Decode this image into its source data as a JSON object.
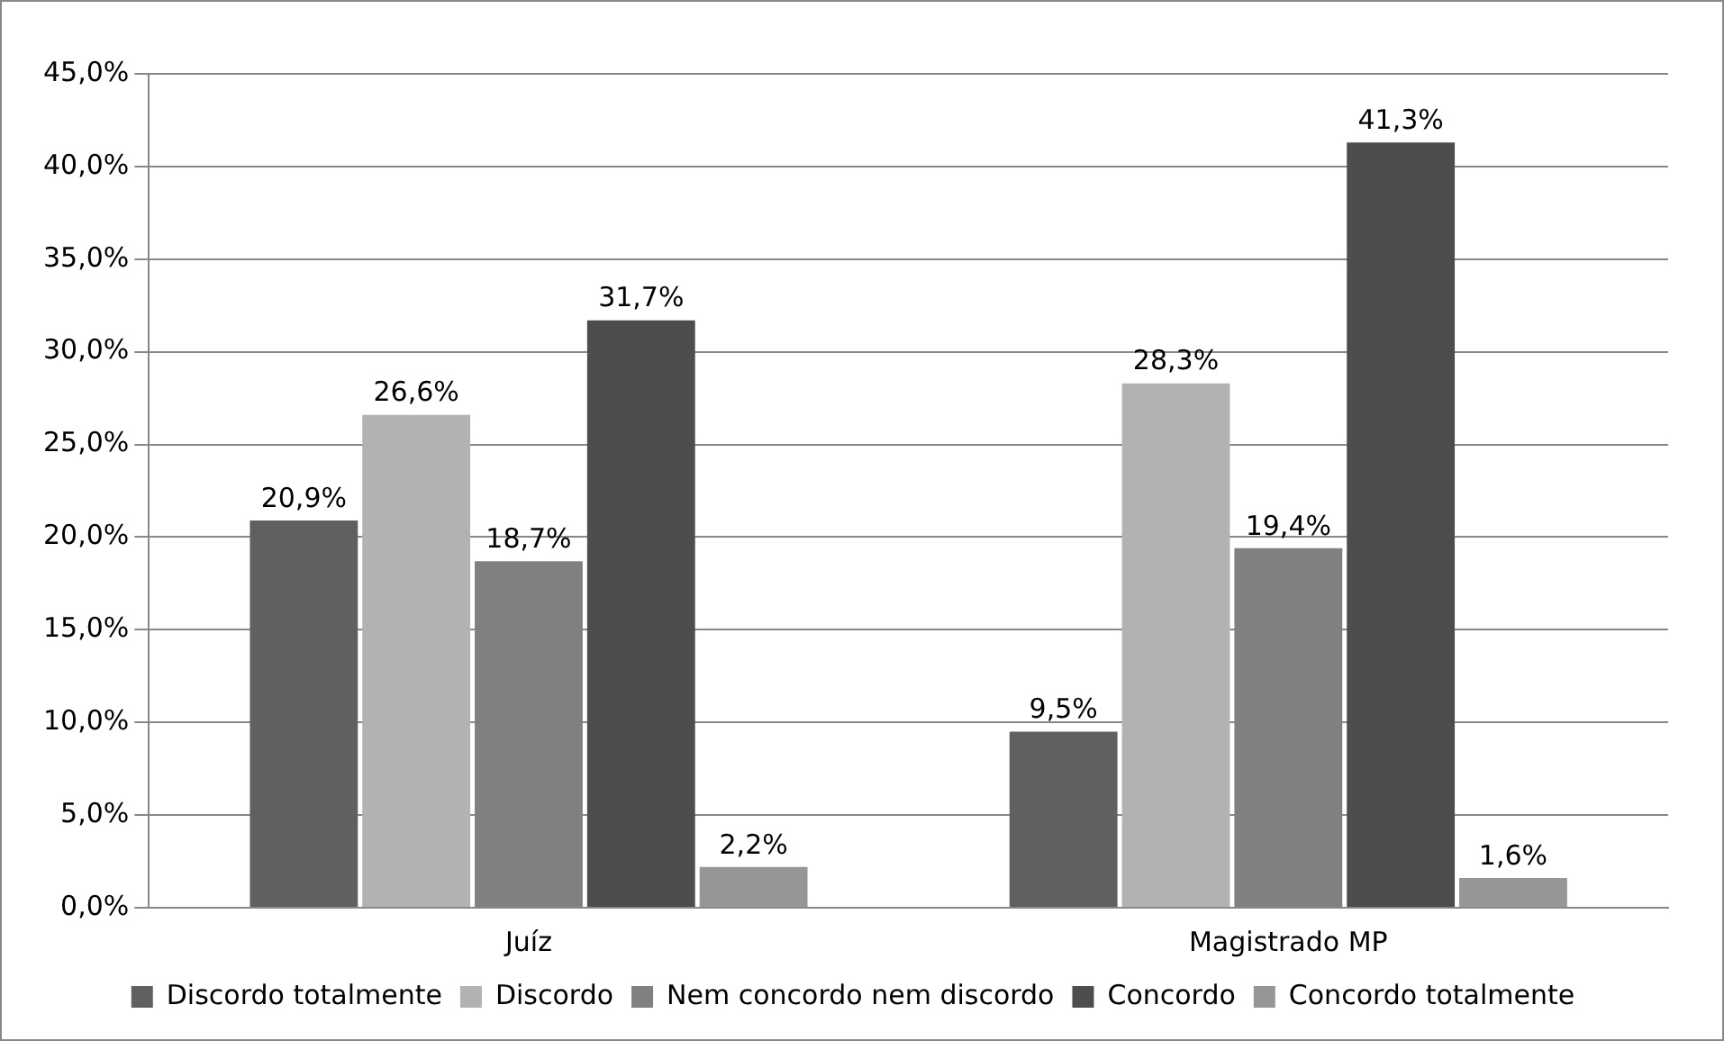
{
  "chart_data": {
    "type": "bar",
    "categories": [
      "Juíz",
      "Magistrado MP"
    ],
    "series": [
      {
        "name": "Discordo totalmente",
        "color": "#606060",
        "values": [
          20.9,
          9.5
        ],
        "value_labels": [
          "20,9%",
          "9,5%"
        ]
      },
      {
        "name": "Discordo",
        "color": "#b2b2b2",
        "values": [
          26.6,
          28.3
        ],
        "value_labels": [
          "26,6%",
          "28,3%"
        ]
      },
      {
        "name": "Nem concordo nem discordo",
        "color": "#808080",
        "values": [
          18.7,
          19.4
        ],
        "value_labels": [
          "18,7%",
          "19,4%"
        ]
      },
      {
        "name": "Concordo",
        "color": "#4d4d4d",
        "values": [
          31.7,
          41.3
        ],
        "value_labels": [
          "31,7%",
          "41,3%"
        ]
      },
      {
        "name": "Concordo totalmente",
        "color": "#969696",
        "values": [
          2.2,
          1.6
        ],
        "value_labels": [
          "2,2%",
          "1,6%"
        ]
      }
    ],
    "ylim": [
      0,
      45
    ],
    "yticks": [
      {
        "value": 0,
        "label": "0,0%"
      },
      {
        "value": 5,
        "label": "5,0%"
      },
      {
        "value": 10,
        "label": "10,0%"
      },
      {
        "value": 15,
        "label": "15,0%"
      },
      {
        "value": 20,
        "label": "20,0%"
      },
      {
        "value": 25,
        "label": "25,0%"
      },
      {
        "value": 30,
        "label": "30,0%"
      },
      {
        "value": 35,
        "label": "35,0%"
      },
      {
        "value": 40,
        "label": "40,0%"
      },
      {
        "value": 45,
        "label": "45,0%"
      }
    ],
    "grid": "y",
    "legend": "bottom"
  }
}
